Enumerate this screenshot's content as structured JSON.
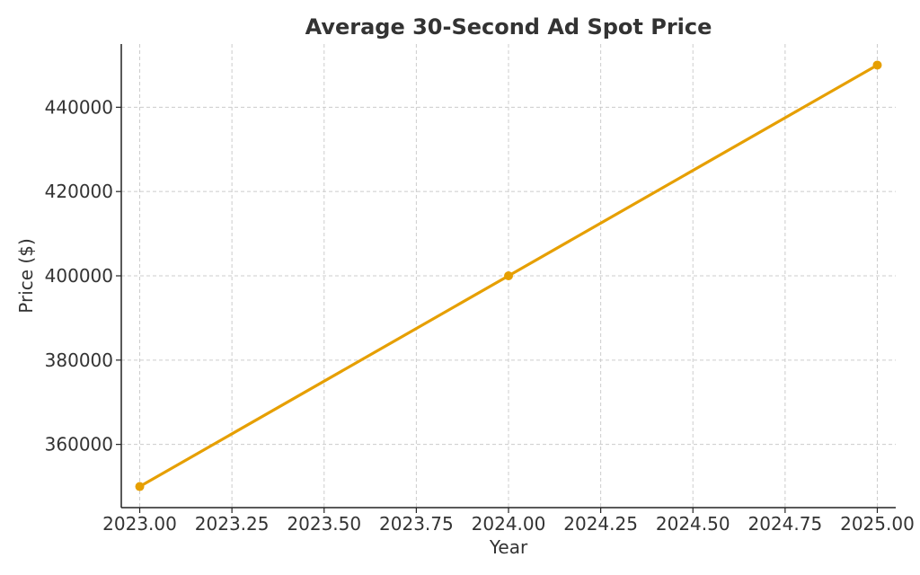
{
  "chart_data": {
    "type": "line",
    "title": "Average 30-Second Ad Spot Price",
    "xlabel": "Year",
    "ylabel": "Price ($)",
    "x": [
      2023,
      2024,
      2025
    ],
    "series": [
      {
        "values": [
          350000,
          400000,
          450000
        ],
        "color": "#e69f00"
      }
    ],
    "xlim": [
      2022.95,
      2025.05
    ],
    "ylim": [
      345000,
      455000
    ],
    "x_ticks": [
      2023.0,
      2023.25,
      2023.5,
      2023.75,
      2024.0,
      2024.25,
      2024.5,
      2024.75,
      2025.0
    ],
    "x_tick_labels": [
      "2023.00",
      "2023.25",
      "2023.50",
      "2023.75",
      "2024.00",
      "2024.25",
      "2024.50",
      "2024.75",
      "2025.00"
    ],
    "y_ticks": [
      360000,
      380000,
      400000,
      420000,
      440000
    ],
    "y_tick_labels": [
      "360000",
      "380000",
      "400000",
      "420000",
      "440000"
    ],
    "grid": true,
    "markers": true
  }
}
